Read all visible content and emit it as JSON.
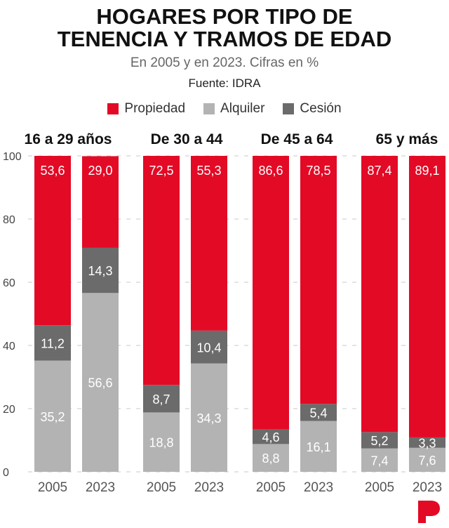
{
  "header": {
    "title_line1": "HOGARES POR TIPO DE",
    "title_line2": "TENENCIA Y TRAMOS DE EDAD",
    "subtitle": "En 2005 y en 2023. Cifras en %",
    "source": "Fuente: IDRA"
  },
  "legend": [
    {
      "label": "Propiedad",
      "color": "#e30a26"
    },
    {
      "label": "Alquiler",
      "color": "#b3b3b3"
    },
    {
      "label": "Cesión",
      "color": "#6b6b6b"
    }
  ],
  "chart_data": {
    "type": "bar",
    "stacked": true,
    "groups": [
      "16 a 29 años",
      "De 30 a 44",
      "De 45 a 64",
      "65 y más"
    ],
    "categories": [
      "2005",
      "2023"
    ],
    "series": [
      {
        "name": "Alquiler",
        "color": "#b3b3b3",
        "values": [
          [
            35.2,
            56.6
          ],
          [
            18.8,
            34.3
          ],
          [
            8.8,
            16.1
          ],
          [
            7.4,
            7.6
          ]
        ]
      },
      {
        "name": "Cesión",
        "color": "#6b6b6b",
        "values": [
          [
            11.2,
            14.3
          ],
          [
            8.7,
            10.4
          ],
          [
            4.6,
            5.4
          ],
          [
            5.2,
            3.3
          ]
        ]
      },
      {
        "name": "Propiedad",
        "color": "#e30a26",
        "values": [
          [
            53.6,
            29.0
          ],
          [
            72.5,
            55.3
          ],
          [
            86.6,
            78.5
          ],
          [
            87.4,
            89.1
          ]
        ]
      }
    ],
    "labels": {
      "Alquiler": [
        [
          "35,2",
          "56,6"
        ],
        [
          "18,8",
          "34,3"
        ],
        [
          "8,8",
          "16,1"
        ],
        [
          "7,4",
          "7,6"
        ]
      ],
      "Cesión": [
        [
          "11,2",
          "14,3"
        ],
        [
          "8,7",
          "10,4"
        ],
        [
          "4,6",
          "5,4"
        ],
        [
          "5,2",
          "3,3"
        ]
      ],
      "Propiedad": [
        [
          "53,6",
          "29,0"
        ],
        [
          "72,5",
          "55,3"
        ],
        [
          "86,6",
          "78,5"
        ],
        [
          "87,4",
          "89,1"
        ]
      ]
    },
    "ylim": [
      0,
      100
    ],
    "yticks": [
      "0",
      "20",
      "40",
      "60",
      "80",
      "100"
    ],
    "grid": true
  }
}
